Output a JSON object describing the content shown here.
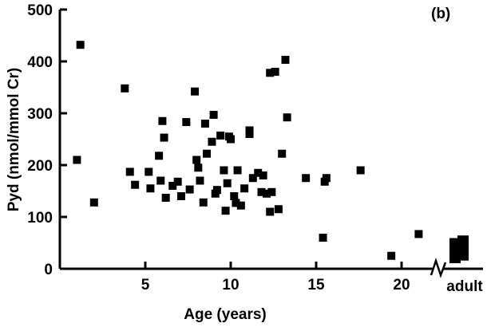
{
  "chart_data": {
    "type": "scatter",
    "panel_label": "(b)",
    "xlabel": "Age (years)",
    "ylabel": "Pyd (nmol/mmol Cr)",
    "xlim": [
      0,
      22.5
    ],
    "ylim": [
      0,
      500
    ],
    "x_ticks": [
      5,
      10,
      15,
      20
    ],
    "y_ticks": [
      0,
      100,
      200,
      300,
      400,
      500
    ],
    "axis_break": true,
    "extra_category": "adult",
    "points": [
      {
        "x": 1.0,
        "y": 210
      },
      {
        "x": 1.2,
        "y": 432
      },
      {
        "x": 2.0,
        "y": 128
      },
      {
        "x": 3.8,
        "y": 348
      },
      {
        "x": 4.1,
        "y": 187
      },
      {
        "x": 4.4,
        "y": 162
      },
      {
        "x": 5.2,
        "y": 187
      },
      {
        "x": 5.3,
        "y": 155
      },
      {
        "x": 5.8,
        "y": 218
      },
      {
        "x": 5.9,
        "y": 170
      },
      {
        "x": 6.0,
        "y": 285
      },
      {
        "x": 6.1,
        "y": 253
      },
      {
        "x": 6.2,
        "y": 137
      },
      {
        "x": 6.6,
        "y": 160
      },
      {
        "x": 6.9,
        "y": 168
      },
      {
        "x": 7.1,
        "y": 140
      },
      {
        "x": 7.4,
        "y": 283
      },
      {
        "x": 7.6,
        "y": 153
      },
      {
        "x": 7.9,
        "y": 342
      },
      {
        "x": 8.0,
        "y": 210
      },
      {
        "x": 8.1,
        "y": 195
      },
      {
        "x": 8.2,
        "y": 170
      },
      {
        "x": 8.4,
        "y": 128
      },
      {
        "x": 8.5,
        "y": 280
      },
      {
        "x": 8.6,
        "y": 222
      },
      {
        "x": 8.9,
        "y": 245
      },
      {
        "x": 9.0,
        "y": 297
      },
      {
        "x": 9.1,
        "y": 145
      },
      {
        "x": 9.2,
        "y": 152
      },
      {
        "x": 9.4,
        "y": 257
      },
      {
        "x": 9.6,
        "y": 190
      },
      {
        "x": 9.7,
        "y": 112
      },
      {
        "x": 9.8,
        "y": 165
      },
      {
        "x": 9.9,
        "y": 255
      },
      {
        "x": 10.0,
        "y": 250
      },
      {
        "x": 10.2,
        "y": 140
      },
      {
        "x": 10.3,
        "y": 127
      },
      {
        "x": 10.4,
        "y": 190
      },
      {
        "x": 10.6,
        "y": 122
      },
      {
        "x": 10.8,
        "y": 155
      },
      {
        "x": 11.1,
        "y": 267
      },
      {
        "x": 11.1,
        "y": 260
      },
      {
        "x": 11.3,
        "y": 175
      },
      {
        "x": 11.6,
        "y": 185
      },
      {
        "x": 11.8,
        "y": 148
      },
      {
        "x": 11.9,
        "y": 180
      },
      {
        "x": 12.1,
        "y": 145
      },
      {
        "x": 12.3,
        "y": 110
      },
      {
        "x": 12.3,
        "y": 378
      },
      {
        "x": 12.4,
        "y": 148
      },
      {
        "x": 12.6,
        "y": 380
      },
      {
        "x": 12.8,
        "y": 115
      },
      {
        "x": 13.0,
        "y": 222
      },
      {
        "x": 13.2,
        "y": 403
      },
      {
        "x": 13.3,
        "y": 292
      },
      {
        "x": 14.4,
        "y": 175
      },
      {
        "x": 15.4,
        "y": 60
      },
      {
        "x": 15.5,
        "y": 168
      },
      {
        "x": 15.6,
        "y": 175
      },
      {
        "x": 17.6,
        "y": 190
      },
      {
        "x": 19.4,
        "y": 25
      },
      {
        "x": 21.0,
        "y": 67
      }
    ],
    "adult_points": [
      {
        "y": 20
      },
      {
        "y": 25
      },
      {
        "y": 30
      },
      {
        "y": 35
      },
      {
        "y": 40
      },
      {
        "y": 45
      },
      {
        "y": 50
      },
      {
        "y": 55
      }
    ]
  }
}
